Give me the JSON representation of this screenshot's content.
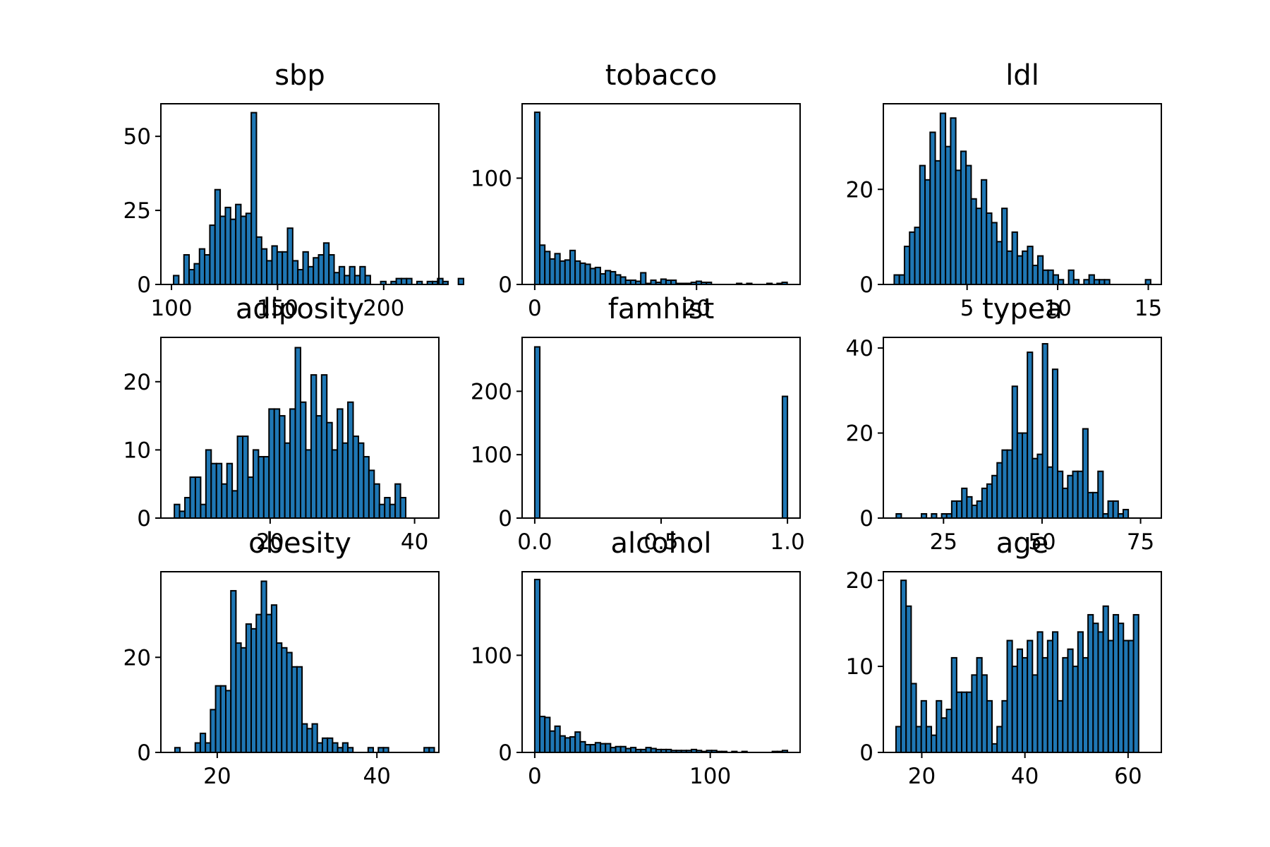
{
  "chart_data": [
    {
      "type": "bar",
      "title": "sbp",
      "xlabel": "",
      "ylabel": "",
      "xlim": [
        95,
        226
      ],
      "ylim": [
        0,
        61
      ],
      "xticks": [
        100,
        150,
        200
      ],
      "yticks": [
        0,
        25,
        50
      ],
      "bin_start": 101,
      "bin_width": 2.44,
      "values": [
        3,
        0,
        10,
        5,
        7,
        12,
        10,
        20,
        32,
        23,
        26,
        22,
        27,
        23,
        24,
        58,
        16,
        12,
        8,
        13,
        11,
        11,
        19,
        8,
        5,
        11,
        6,
        9,
        10,
        14,
        10,
        4,
        6,
        3,
        6,
        3,
        6,
        3,
        0,
        0,
        1,
        0,
        1,
        2,
        2,
        2,
        0,
        1,
        0,
        1,
        1,
        2,
        1,
        0,
        0,
        2
      ]
    },
    {
      "type": "bar",
      "title": "tobacco",
      "xlabel": "",
      "ylabel": "",
      "xlim": [
        -1.56,
        32.8
      ],
      "ylim": [
        0,
        170
      ],
      "xticks": [
        0,
        20
      ],
      "yticks": [
        0,
        100
      ],
      "bin_start": 0,
      "bin_width": 0.624,
      "values": [
        162,
        37,
        31,
        24,
        29,
        22,
        23,
        32,
        22,
        20,
        19,
        15,
        16,
        10,
        13,
        12,
        9,
        7,
        4,
        4,
        3,
        11,
        1,
        4,
        2,
        5,
        4,
        4,
        1,
        1,
        1,
        2,
        3,
        2,
        2,
        0,
        0,
        0,
        0,
        0,
        1,
        0,
        1,
        0,
        0,
        0,
        1,
        0,
        1,
        2
      ]
    },
    {
      "type": "bar",
      "title": "ldl",
      "xlabel": "",
      "ylabel": "",
      "xlim": [
        0.38,
        15.72
      ],
      "ylim": [
        0,
        38
      ],
      "xticks": [
        5,
        10,
        15
      ],
      "yticks": [
        0,
        20
      ],
      "bin_start": 0.98,
      "bin_width": 0.283,
      "values": [
        2,
        2,
        8,
        11,
        12,
        25,
        22,
        32,
        26,
        36,
        29,
        35,
        24,
        28,
        25,
        18,
        16,
        22,
        15,
        13,
        9,
        16,
        7,
        11,
        6,
        7,
        8,
        4,
        6,
        3,
        3,
        2,
        1,
        0,
        3,
        1,
        0,
        1,
        2,
        1,
        1,
        1,
        0,
        0,
        0,
        0,
        0,
        0,
        0,
        1
      ]
    },
    {
      "type": "bar",
      "title": "adiposity",
      "xlabel": "",
      "ylabel": "",
      "xlim": [
        4.87,
        43.36
      ],
      "ylim": [
        0,
        26.5
      ],
      "xticks": [
        20,
        40
      ],
      "yticks": [
        0,
        10,
        20
      ],
      "bin_start": 6.74,
      "bin_width": 0.728,
      "values": [
        2,
        1,
        3,
        6,
        6,
        2,
        10,
        8,
        8,
        5,
        8,
        4,
        12,
        12,
        6,
        10,
        9,
        9,
        16,
        16,
        15,
        11,
        16,
        25,
        17,
        10,
        21,
        15,
        21,
        14,
        10,
        16,
        11,
        17,
        12,
        11,
        9,
        7,
        5,
        2,
        3,
        2,
        5,
        3
      ]
    },
    {
      "type": "bar",
      "title": "famhist",
      "xlabel": "",
      "ylabel": "",
      "xlim": [
        -0.05,
        1.05
      ],
      "ylim": [
        0,
        285
      ],
      "xticks": [
        0.0,
        0.5,
        1.0
      ],
      "yticks": [
        0,
        100,
        200
      ],
      "bin_start": 0,
      "bin_width": 0.02,
      "values": [
        270,
        0,
        0,
        0,
        0,
        0,
        0,
        0,
        0,
        0,
        0,
        0,
        0,
        0,
        0,
        0,
        0,
        0,
        0,
        0,
        0,
        0,
        0,
        0,
        0,
        0,
        0,
        0,
        0,
        0,
        0,
        0,
        0,
        0,
        0,
        0,
        0,
        0,
        0,
        0,
        0,
        0,
        0,
        0,
        0,
        0,
        0,
        0,
        0,
        192
      ]
    },
    {
      "type": "bar",
      "title": "typea",
      "xlabel": "",
      "ylabel": "",
      "xlim": [
        9.73,
        80.27
      ],
      "ylim": [
        0,
        42.5
      ],
      "xticks": [
        25,
        50,
        75
      ],
      "yticks": [
        0,
        20,
        40
      ],
      "bin_start": 13,
      "bin_width": 1.28,
      "values": [
        1,
        0,
        0,
        0,
        0,
        1,
        0,
        1,
        0,
        1,
        1,
        4,
        4,
        7,
        5,
        3,
        4,
        7,
        8,
        10,
        13,
        16,
        16,
        31,
        20,
        20,
        39,
        14,
        15,
        41,
        12,
        35,
        11,
        7,
        10,
        11,
        11,
        21,
        6,
        6,
        11,
        1,
        4,
        4,
        1,
        2
      ]
    },
    {
      "type": "bar",
      "title": "obesity",
      "xlabel": "",
      "ylabel": "",
      "xlim": [
        12.94,
        47.76
      ],
      "ylim": [
        0,
        38
      ],
      "xticks": [
        20,
        40
      ],
      "yticks": [
        0,
        20
      ],
      "bin_start": 14.7,
      "bin_width": 0.637,
      "values": [
        1,
        0,
        0,
        0,
        2,
        4,
        2,
        9,
        14,
        14,
        13,
        34,
        23,
        22,
        27,
        26,
        29,
        36,
        29,
        31,
        23,
        22,
        21,
        18,
        18,
        6,
        5,
        6,
        2,
        3,
        3,
        2,
        1,
        2,
        1,
        0,
        0,
        0,
        1,
        0,
        1,
        1,
        0,
        0,
        0,
        0,
        0,
        0,
        0,
        1,
        1
      ]
    },
    {
      "type": "bar",
      "title": "alcohol",
      "xlabel": "",
      "ylabel": "",
      "xlim": [
        -7.2,
        151.2
      ],
      "ylim": [
        0,
        186
      ],
      "xticks": [
        0,
        100
      ],
      "yticks": [
        0,
        100
      ],
      "bin_start": 0,
      "bin_width": 2.88,
      "values": [
        178,
        37,
        36,
        22,
        27,
        17,
        15,
        16,
        21,
        11,
        8,
        8,
        10,
        9,
        9,
        5,
        6,
        6,
        4,
        5,
        3,
        3,
        5,
        4,
        3,
        3,
        3,
        2,
        2,
        2,
        2,
        3,
        2,
        1,
        2,
        2,
        1,
        1,
        0,
        1,
        0,
        1,
        0,
        0,
        0,
        0,
        0,
        1,
        1,
        2
      ]
    },
    {
      "type": "bar",
      "title": "age",
      "xlabel": "",
      "ylabel": "",
      "xlim": [
        12.55,
        66.45
      ],
      "ylim": [
        0,
        21
      ],
      "xticks": [
        20,
        40,
        60
      ],
      "yticks": [
        0,
        10,
        20
      ],
      "bin_start": 15,
      "bin_width": 0.98,
      "values": [
        3,
        20,
        17,
        8,
        3,
        6,
        3,
        2,
        6,
        4,
        5,
        11,
        7,
        7,
        7,
        9,
        11,
        9,
        6,
        1,
        3,
        6,
        13,
        10,
        12,
        11,
        13,
        9,
        14,
        11,
        13,
        14,
        6,
        11,
        12,
        10,
        14,
        11,
        16,
        15,
        14,
        17,
        13,
        16,
        15,
        13,
        13,
        16
      ]
    }
  ]
}
